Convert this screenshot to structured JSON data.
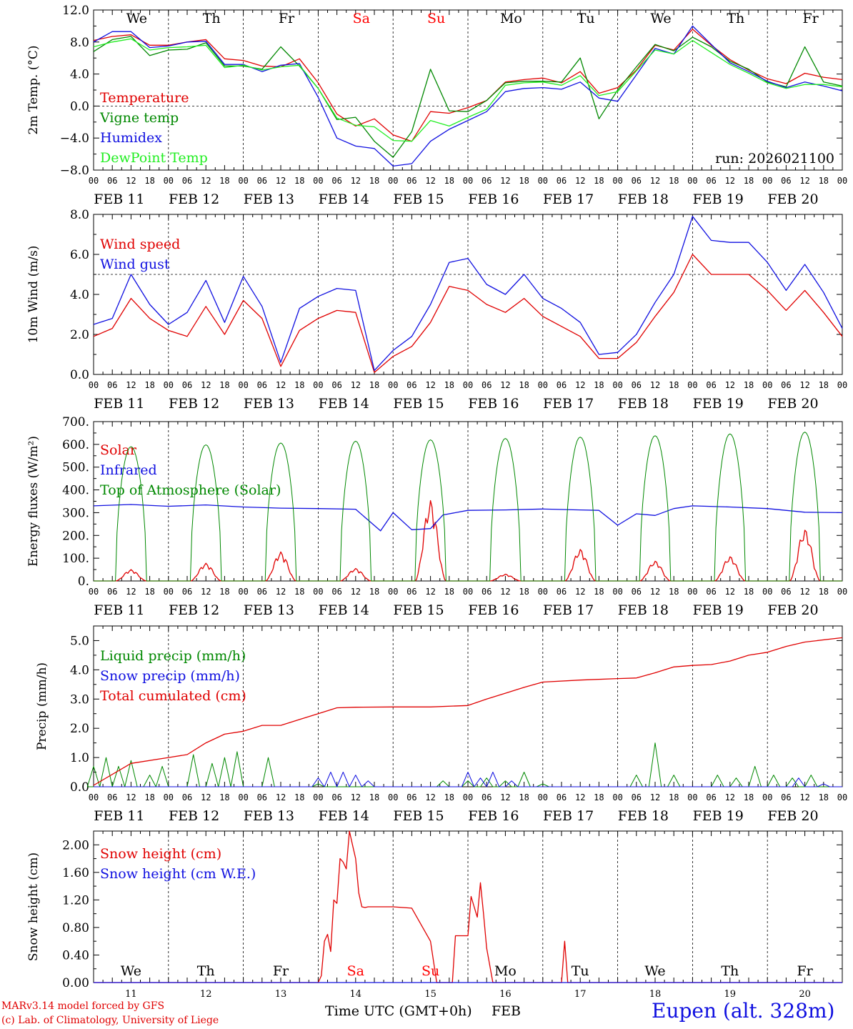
{
  "colors": {
    "red": "#e00000",
    "blue": "#1010e0",
    "green": "#008800",
    "lightgreen": "#22ee22",
    "weekend": "#ff0000",
    "axis": "#000000"
  },
  "hour_ticks": [
    "00",
    "06",
    "12",
    "18"
  ],
  "final_tick": "00",
  "dates": [
    "FEB 11",
    "FEB 12",
    "FEB 13",
    "FEB 14",
    "FEB 15",
    "FEB 16",
    "FEB 17",
    "FEB 18",
    "FEB 19",
    "FEB 20"
  ],
  "weekdays": [
    "We",
    "Th",
    "Fr",
    "Sa",
    "Su",
    "Mo",
    "Tu",
    "We",
    "Th",
    "Fr"
  ],
  "weekend_days": [
    "Sa",
    "Su"
  ],
  "day_numbers": [
    "11",
    "12",
    "13",
    "14",
    "15",
    "16",
    "17",
    "18",
    "19",
    "20"
  ],
  "footer": {
    "credit_line1": "MARv3.14 model forced by GFS",
    "credit_line2": "(c) Lab. of Climatology, University of Liege",
    "x_title": "Time UTC (GMT+0h)",
    "x_unit": "FEB",
    "station": "Eupen (alt. 328m)"
  },
  "chart_data": [
    {
      "type": "line",
      "ylabel": "2m Temp. (°C)",
      "ylim": [
        -8,
        12
      ],
      "ytick_labels": [
        "12.0",
        "8.0",
        "4.0",
        "0.0",
        "−4.0",
        "−8.0"
      ],
      "yticks": [
        12,
        8,
        4,
        0,
        -4,
        -8
      ],
      "ref_line": 0,
      "x_hours": [
        0,
        6,
        12,
        18,
        24,
        30,
        36,
        42,
        48,
        54,
        60,
        66,
        72,
        78,
        84,
        90,
        96,
        102,
        108,
        114,
        120,
        126,
        132,
        138,
        144,
        150,
        156,
        162,
        168,
        174,
        180,
        186,
        192,
        198,
        204,
        210,
        216,
        222,
        228,
        234,
        240
      ],
      "annotation": "run: 2026021100",
      "series": [
        {
          "name": "Temperature",
          "color": "#e00000",
          "values": [
            8.2,
            8.7,
            8.9,
            7.6,
            7.6,
            8.0,
            8.3,
            5.9,
            5.7,
            5.0,
            4.9,
            5.9,
            2.9,
            -1.0,
            -2.5,
            -1.6,
            -3.6,
            -4.4,
            -0.7,
            -0.9,
            -0.2,
            0.7,
            3.0,
            3.3,
            3.5,
            2.9,
            4.3,
            1.6,
            2.3,
            4.5,
            7.6,
            7.0,
            9.6,
            7.6,
            5.8,
            4.5,
            3.4,
            2.8,
            4.1,
            3.6,
            3.3
          ]
        },
        {
          "name": "Vigne temp",
          "color": "#008800",
          "values": [
            6.8,
            8.3,
            8.7,
            6.3,
            7.0,
            7.1,
            7.9,
            5.0,
            5.0,
            4.6,
            7.4,
            5.0,
            2.2,
            -1.7,
            -1.4,
            -4.4,
            -6.4,
            -3.2,
            4.6,
            -0.6,
            -0.7,
            0.7,
            2.9,
            3.1,
            3.1,
            3.0,
            6.0,
            -1.6,
            2.0,
            4.9,
            7.7,
            6.9,
            8.6,
            7.4,
            5.6,
            4.6,
            3.0,
            2.4,
            7.4,
            3.0,
            2.5
          ]
        },
        {
          "name": "Humidex",
          "color": "#1010e0",
          "values": [
            8.0,
            9.3,
            9.3,
            7.3,
            7.5,
            8.0,
            8.1,
            5.2,
            5.2,
            4.3,
            5.1,
            5.3,
            1.1,
            -4.0,
            -5.0,
            -5.3,
            -7.5,
            -7.2,
            -4.4,
            -2.9,
            -1.8,
            -0.7,
            1.8,
            2.2,
            2.3,
            2.1,
            3.0,
            1.0,
            0.6,
            3.9,
            7.2,
            6.5,
            10.0,
            7.7,
            5.4,
            4.3,
            3.1,
            2.3,
            3.0,
            2.5,
            1.9
          ]
        },
        {
          "name": "DewPoint Temp",
          "color": "#22ee22",
          "values": [
            7.4,
            8.0,
            8.4,
            7.0,
            7.3,
            7.4,
            7.6,
            4.8,
            5.1,
            4.5,
            4.9,
            5.1,
            2.2,
            -1.5,
            -2.4,
            -2.6,
            -4.3,
            -4.4,
            -1.8,
            -2.5,
            -1.4,
            -0.4,
            2.6,
            2.9,
            3.0,
            2.6,
            3.8,
            1.3,
            1.8,
            4.4,
            7.0,
            6.5,
            8.2,
            6.7,
            5.2,
            4.1,
            2.9,
            2.2,
            2.7,
            2.7,
            2.4
          ]
        }
      ]
    },
    {
      "type": "line",
      "ylabel": "10m Wind (m/s)",
      "ylim": [
        0,
        8
      ],
      "ytick_labels": [
        "8.0",
        "6.0",
        "4.0",
        "2.0",
        "0.0"
      ],
      "yticks": [
        8,
        6,
        4,
        2,
        0
      ],
      "ref_line": 5,
      "x_hours": [
        0,
        6,
        12,
        18,
        24,
        30,
        36,
        42,
        48,
        54,
        60,
        66,
        72,
        78,
        84,
        90,
        96,
        102,
        108,
        114,
        120,
        126,
        132,
        138,
        144,
        150,
        156,
        162,
        168,
        174,
        180,
        186,
        192,
        198,
        204,
        210,
        216,
        222,
        228,
        234,
        240
      ],
      "series": [
        {
          "name": "Wind speed",
          "color": "#e00000",
          "values": [
            1.9,
            2.3,
            3.8,
            2.8,
            2.2,
            1.9,
            3.4,
            2.0,
            3.7,
            2.8,
            0.4,
            2.2,
            2.8,
            3.2,
            3.1,
            0.1,
            0.9,
            1.4,
            2.6,
            4.4,
            4.2,
            3.5,
            3.1,
            3.8,
            2.9,
            2.4,
            1.9,
            0.8,
            0.8,
            1.6,
            2.9,
            4.1,
            6.0,
            5.0,
            5.0,
            5.0,
            4.2,
            3.2,
            4.2,
            3.1,
            1.9
          ]
        },
        {
          "name": "Wind gust",
          "color": "#1010e0",
          "values": [
            2.5,
            2.8,
            5.0,
            3.5,
            2.5,
            3.1,
            4.7,
            2.6,
            4.9,
            3.4,
            0.6,
            3.3,
            3.9,
            4.3,
            4.2,
            0.2,
            1.2,
            1.9,
            3.5,
            5.6,
            5.8,
            4.5,
            4.0,
            5.0,
            3.8,
            3.3,
            2.6,
            1.0,
            1.1,
            2.0,
            3.6,
            5.0,
            7.9,
            6.7,
            6.6,
            6.6,
            5.6,
            4.2,
            5.5,
            4.1,
            2.3
          ]
        }
      ]
    },
    {
      "type": "line",
      "ylabel": "Energy fluxes (W/m²)",
      "ylim": [
        0,
        700
      ],
      "ytick_labels": [
        "700.",
        "600.",
        "500.",
        "400.",
        "300.",
        "200.",
        "100.",
        "0."
      ],
      "yticks": [
        700,
        600,
        500,
        400,
        300,
        200,
        100,
        0
      ],
      "day_peaks": {
        "Top of Atmosphere (Solar)": [
          590,
          598,
          606,
          614,
          620,
          626,
          632,
          638,
          646,
          654
        ],
        "Solar": [
          50,
          78,
          128,
          55,
          355,
          30,
          140,
          88,
          108,
          228
        ]
      },
      "series": [
        {
          "name": "Solar",
          "color": "#e00000"
        },
        {
          "name": "Infrared",
          "color": "#1010e0",
          "x_hours": [
            0,
            12,
            24,
            36,
            48,
            60,
            72,
            84,
            92,
            96,
            102,
            108,
            112,
            120,
            132,
            144,
            156,
            162,
            168,
            174,
            180,
            186,
            192,
            204,
            216,
            228,
            240
          ],
          "values": [
            330,
            336,
            328,
            334,
            325,
            320,
            318,
            315,
            220,
            300,
            225,
            230,
            290,
            310,
            312,
            316,
            312,
            310,
            245,
            295,
            288,
            318,
            330,
            325,
            318,
            302,
            300
          ]
        },
        {
          "name": "Top of Atmosphere (Solar)",
          "color": "#008800"
        }
      ]
    },
    {
      "type": "line",
      "ylabel": "Precip (mm/h)",
      "ylim": [
        0,
        5.5
      ],
      "ytick_labels": [
        "5.0",
        "4.0",
        "3.0",
        "2.0",
        "1.0",
        "0.0"
      ],
      "yticks": [
        5,
        4,
        3,
        2,
        1,
        0
      ],
      "series": [
        {
          "name": "Liquid precip (mm/h)",
          "color": "#008800",
          "spikes": [
            [
              0,
              0.7
            ],
            [
              4,
              1.0
            ],
            [
              8,
              0.7
            ],
            [
              12,
              0.9
            ],
            [
              18,
              0.4
            ],
            [
              22,
              0.7
            ],
            [
              32,
              1.1
            ],
            [
              38,
              0.8
            ],
            [
              42,
              1.0
            ],
            [
              46,
              1.2
            ],
            [
              56,
              1.0
            ],
            [
              72,
              0.1
            ],
            [
              112,
              0.2
            ],
            [
              120,
              0.2
            ],
            [
              126,
              0.3
            ],
            [
              132,
              0.2
            ],
            [
              138,
              0.5
            ],
            [
              144,
              0.1
            ],
            [
              174,
              0.4
            ],
            [
              180,
              1.5
            ],
            [
              186,
              0.4
            ],
            [
              200,
              0.4
            ],
            [
              206,
              0.3
            ],
            [
              212,
              0.7
            ],
            [
              218,
              0.4
            ],
            [
              224,
              0.3
            ],
            [
              230,
              0.4
            ]
          ]
        },
        {
          "name": "Snow precip (mm/h)",
          "color": "#1010e0",
          "spikes": [
            [
              72,
              0.3
            ],
            [
              76,
              0.5
            ],
            [
              80,
              0.5
            ],
            [
              84,
              0.4
            ],
            [
              88,
              0.2
            ],
            [
              120,
              0.5
            ],
            [
              124,
              0.3
            ],
            [
              128,
              0.5
            ],
            [
              134,
              0.2
            ],
            [
              226,
              0.3
            ],
            [
              234,
              0.1
            ]
          ]
        },
        {
          "name": "Total cumulated (cm)",
          "color": "#e00000",
          "x_hours": [
            0,
            12,
            24,
            30,
            36,
            42,
            48,
            54,
            60,
            66,
            72,
            78,
            84,
            96,
            108,
            120,
            126,
            132,
            138,
            144,
            156,
            168,
            174,
            180,
            186,
            192,
            198,
            204,
            210,
            216,
            222,
            228,
            240
          ],
          "values": [
            0.05,
            0.8,
            1.0,
            1.1,
            1.5,
            1.8,
            1.9,
            2.1,
            2.1,
            2.3,
            2.5,
            2.7,
            2.72,
            2.73,
            2.73,
            2.78,
            3.0,
            3.2,
            3.4,
            3.58,
            3.65,
            3.7,
            3.72,
            3.9,
            4.1,
            4.15,
            4.18,
            4.3,
            4.5,
            4.6,
            4.8,
            4.95,
            5.1
          ]
        }
      ]
    },
    {
      "type": "line",
      "ylabel": "Snow height (cm)",
      "ylim": [
        0,
        2.2
      ],
      "ytick_labels": [
        "2.00",
        "1.60",
        "1.20",
        "0.80",
        "0.40",
        "0.00"
      ],
      "yticks": [
        2,
        1.6,
        1.2,
        0.8,
        0.4,
        0
      ],
      "series": [
        {
          "name": "Snow height (cm)",
          "color": "#e00000",
          "x_hours": [
            0,
            72,
            73,
            74,
            75,
            76,
            77,
            78,
            79,
            80,
            81,
            82,
            83,
            84,
            85,
            86,
            87,
            88,
            90,
            96,
            102,
            108,
            110,
            112,
            113,
            115,
            116,
            120,
            121,
            122,
            123,
            124,
            125,
            126,
            128,
            130,
            136,
            144,
            150,
            151,
            152,
            153,
            240
          ],
          "values": [
            0,
            0,
            0.1,
            0.6,
            0.7,
            0.45,
            1.2,
            1.15,
            1.8,
            1.75,
            1.65,
            2.2,
            2.0,
            1.8,
            1.3,
            1.1,
            1.09,
            1.1,
            1.1,
            1.1,
            1.08,
            0.6,
            0,
            0,
            0,
            0,
            0.68,
            0.68,
            1.25,
            1.1,
            0.95,
            1.45,
            1.0,
            0.5,
            0,
            0,
            0,
            0,
            0,
            0.6,
            0,
            0,
            0
          ]
        },
        {
          "name": "Snow height (cm W.E.)",
          "color": "#1010e0",
          "x_hours": [
            0,
            240
          ],
          "values": [
            0,
            0
          ]
        }
      ]
    }
  ]
}
